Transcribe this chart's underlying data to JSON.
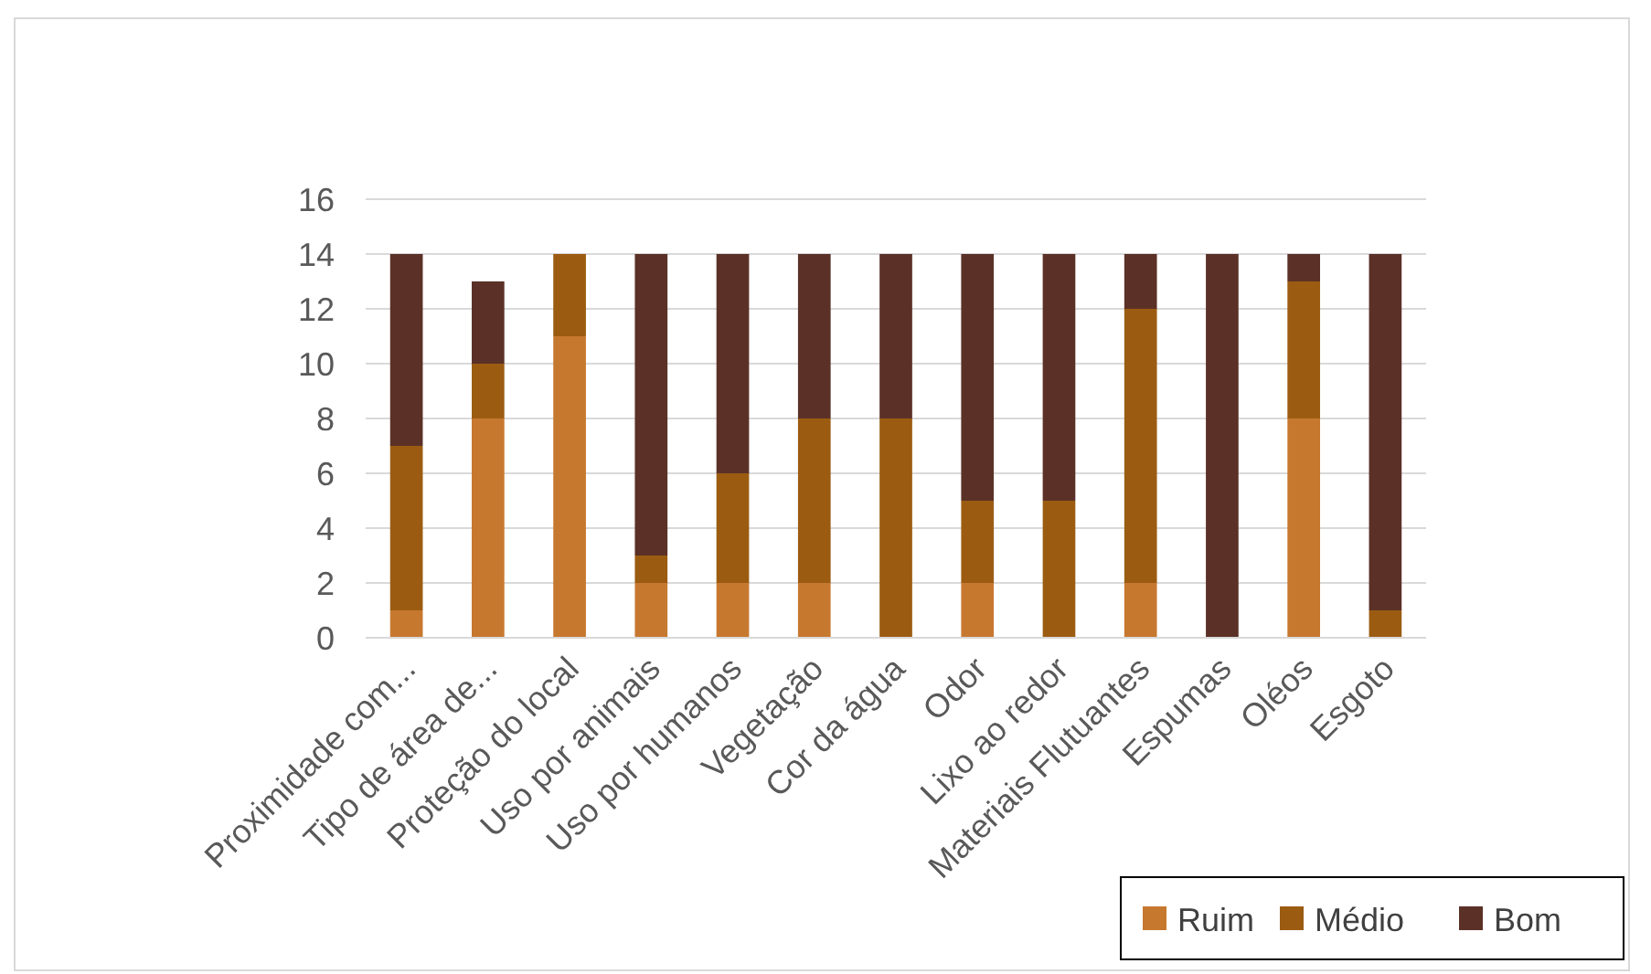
{
  "chart_data": {
    "type": "bar",
    "stacked": true,
    "categories": [
      "Proximidade com...",
      "Tipo de área de...",
      "Proteção do local",
      "Uso por animais",
      "Uso por humanos",
      "Vegetação",
      "Cor da água",
      "Odor",
      "Lixo ao redor",
      "Materiais Flutuantes",
      "Espumas",
      "Oléos",
      "Esgoto"
    ],
    "series": [
      {
        "name": "Ruim",
        "color": "#c7782f",
        "values": [
          1,
          8,
          11,
          2,
          2,
          2,
          0,
          2,
          0,
          2,
          0,
          8,
          0
        ]
      },
      {
        "name": "Médio",
        "color": "#9b5c12",
        "values": [
          6,
          2,
          3,
          1,
          4,
          6,
          8,
          3,
          5,
          10,
          0,
          5,
          1
        ]
      },
      {
        "name": "Bom",
        "color": "#5b3127",
        "values": [
          7,
          3,
          0,
          11,
          8,
          6,
          6,
          9,
          9,
          2,
          14,
          1,
          13
        ]
      }
    ],
    "ylim": [
      0,
      16
    ],
    "yticks": [
      0,
      2,
      4,
      6,
      8,
      10,
      12,
      14,
      16
    ],
    "grid": "y",
    "legend": "bottom right"
  }
}
